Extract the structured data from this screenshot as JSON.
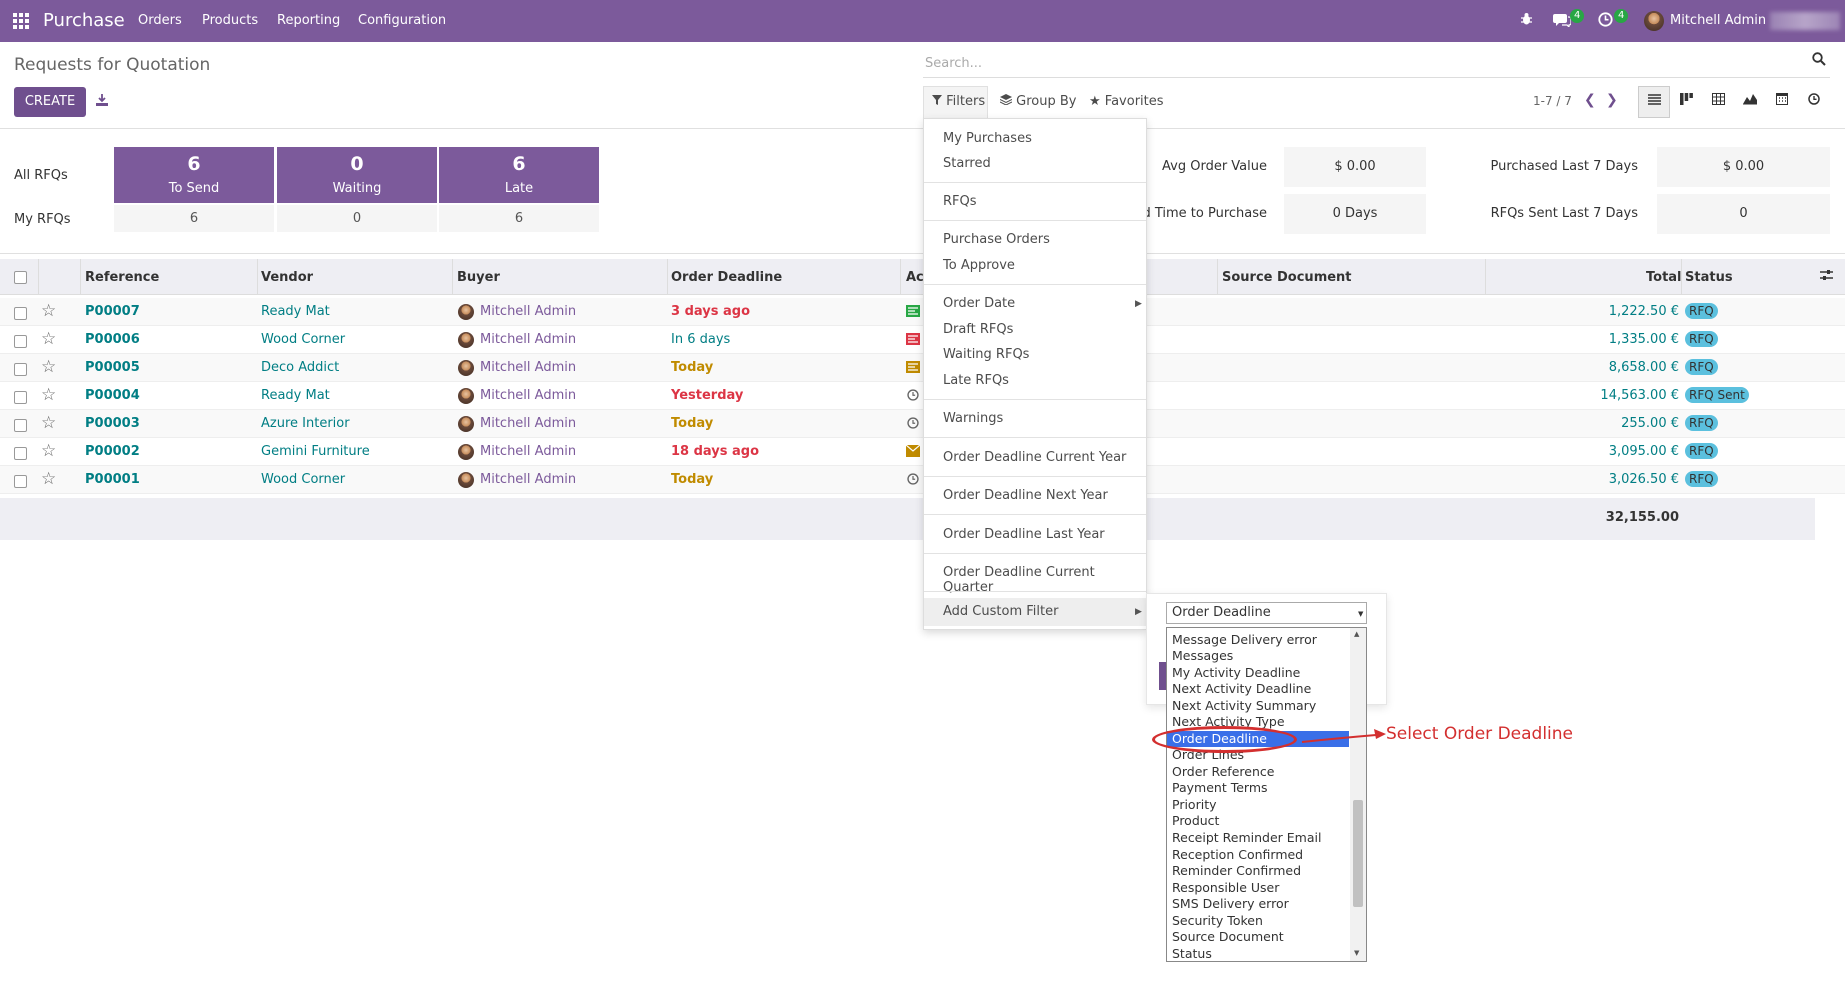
{
  "navbar": {
    "brand": "Purchase",
    "menus": [
      "Orders",
      "Products",
      "Reporting",
      "Configuration"
    ],
    "chat_badge": "4",
    "activity_badge": "4",
    "user": "Mitchell Admin",
    "bg": "#7c5a9b"
  },
  "page": {
    "title": "Requests for Quotation",
    "create_label": "CREATE"
  },
  "search": {
    "placeholder": "Search...",
    "filters_label": "Filters",
    "groupby_label": "Group By",
    "favorites_label": "Favorites",
    "pager": "1-7 / 7"
  },
  "dashboard": {
    "all_label": "All RFQs",
    "my_label": "My RFQs",
    "tiles": [
      {
        "count": "6",
        "label": "To Send",
        "mine": "6"
      },
      {
        "count": "0",
        "label": "Waiting",
        "mine": "0"
      },
      {
        "count": "6",
        "label": "Late",
        "mine": "6"
      }
    ],
    "kpis": [
      {
        "label": "Avg Order Value",
        "value": "$ 0.00"
      },
      {
        "label": "Purchased Last 7 Days",
        "value": "$ 0.00"
      },
      {
        "label": "ad Time to Purchase",
        "value": "0 Days"
      },
      {
        "label": "RFQs Sent Last 7 Days",
        "value": "0"
      }
    ]
  },
  "table": {
    "columns": [
      "Reference",
      "Vendor",
      "Buyer",
      "Order Deadline",
      "Ac",
      "Source Document",
      "Total",
      "Status"
    ],
    "rows": [
      {
        "ref": "P00007",
        "vendor": "Ready Mat",
        "buyer": "Mitchell Admin",
        "deadline": "3 days ago",
        "deadline_style": "red",
        "activity": "green-bars",
        "total": "1,222.50 €",
        "status": "RFQ"
      },
      {
        "ref": "P00006",
        "vendor": "Wood Corner",
        "buyer": "Mitchell Admin",
        "deadline": "In 6 days",
        "deadline_style": "blue",
        "activity": "red-bars",
        "total": "1,335.00 €",
        "status": "RFQ"
      },
      {
        "ref": "P00005",
        "vendor": "Deco Addict",
        "buyer": "Mitchell Admin",
        "deadline": "Today",
        "deadline_style": "orange",
        "activity": "orange-bars",
        "total": "8,658.00 €",
        "status": "RFQ"
      },
      {
        "ref": "P00004",
        "vendor": "Ready Mat",
        "buyer": "Mitchell Admin",
        "deadline": "Yesterday",
        "deadline_style": "red",
        "activity": "clock-icon",
        "total": "14,563.00 €",
        "status": "RFQ Sent"
      },
      {
        "ref": "P00003",
        "vendor": "Azure Interior",
        "buyer": "Mitchell Admin",
        "deadline": "Today",
        "deadline_style": "orange",
        "activity": "clock-icon",
        "total": "255.00 €",
        "status": "RFQ"
      },
      {
        "ref": "P00002",
        "vendor": "Gemini Furniture",
        "buyer": "Mitchell Admin",
        "deadline": "18 days ago",
        "deadline_style": "red",
        "activity": "envelope-icon",
        "total": "3,095.00 €",
        "status": "RFQ"
      },
      {
        "ref": "P00001",
        "vendor": "Wood Corner",
        "buyer": "Mitchell Admin",
        "deadline": "Today",
        "deadline_style": "orange",
        "activity": "clock-icon",
        "total": "3,026.50 €",
        "status": "RFQ"
      }
    ],
    "grand_total": "32,155.00"
  },
  "filters_menu": {
    "items": [
      "My Purchases",
      "Starred",
      "RFQs",
      "Purchase Orders",
      "To Approve",
      "Order Date",
      "Draft RFQs",
      "Waiting RFQs",
      "Late RFQs",
      "Warnings",
      "Order Deadline Current Year",
      "Order Deadline Next Year",
      "Order Deadline Last Year",
      "Order Deadline Current Quarter",
      "Add Custom Filter"
    ]
  },
  "custom_filter": {
    "selected": "Order Deadline",
    "options": [
      "Message Delivery error",
      "Messages",
      "My Activity Deadline",
      "Next Activity Deadline",
      "Next Activity Summary",
      "Next Activity Type",
      "Order Deadline",
      "Order Lines",
      "Order Reference",
      "Payment Terms",
      "Priority",
      "Product",
      "Receipt Reminder Email",
      "Reception Confirmed",
      "Reminder Confirmed",
      "Responsible User",
      "SMS Delivery error",
      "Security Token",
      "Source Document",
      "Status"
    ],
    "highlighted_index": 6
  },
  "annotation": {
    "text": "Select Order Deadline",
    "color": "#d32f2f"
  }
}
